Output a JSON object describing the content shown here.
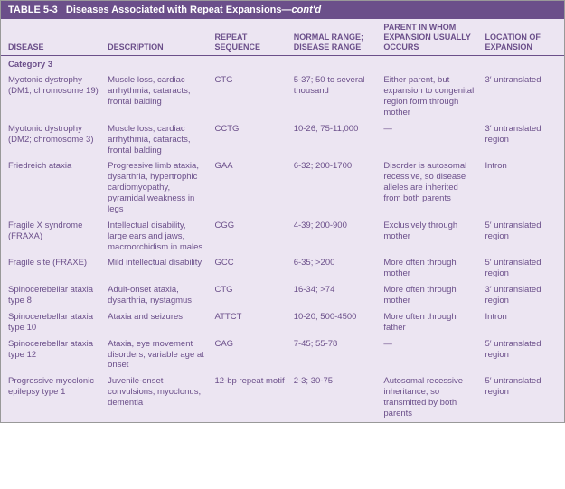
{
  "table": {
    "label": "TABLE 5-3",
    "title": "Diseases Associated with Repeat Expansions—",
    "contd": "cont'd",
    "columns": [
      "DISEASE",
      "DESCRIPTION",
      "REPEAT SEQUENCE",
      "NORMAL RANGE; DISEASE RANGE",
      "PARENT IN WHOM EXPANSION USUALLY OCCURS",
      "LOCATION OF EXPANSION"
    ],
    "category": "Category 3",
    "rows": [
      {
        "disease": "Myotonic dystrophy (DM1; chromosome 19)",
        "description": "Muscle loss, cardiac arrhythmia, cataracts, frontal balding",
        "sequence": "CTG",
        "range": "5-37; 50 to several thousand",
        "parent": "Either parent, but expansion to congenital region form through mother",
        "location": "3′ untranslated"
      },
      {
        "disease": "Myotonic dystrophy (DM2; chromosome 3)",
        "description": "Muscle loss, cardiac arrhythmia, cataracts, frontal balding",
        "sequence": "CCTG",
        "range": "10-26; 75-11,000",
        "parent": "—",
        "location": "3′ untranslated region"
      },
      {
        "disease": "Friedreich ataxia",
        "description": "Progressive limb ataxia, dysarthria, hypertrophic cardiomyopathy, pyramidal weakness in legs",
        "sequence": "GAA",
        "range": "6-32; 200-1700",
        "parent": "Disorder is autosomal recessive, so disease alleles are inherited from both parents",
        "location": "Intron"
      },
      {
        "disease": "Fragile X syndrome (FRAXA)",
        "description": "Intellectual disability, large ears and jaws, macroorchidism in males",
        "sequence": "CGG",
        "range": "4-39; 200-900",
        "parent": "Exclusively through mother",
        "location": "5′ untranslated region"
      },
      {
        "disease": "Fragile site (FRAXE)",
        "description": "Mild intellectual disability",
        "sequence": "GCC",
        "range": "6-35; >200",
        "parent": "More often through mother",
        "location": "5′ untranslated region"
      },
      {
        "disease": "Spinocerebellar ataxia type 8",
        "description": "Adult-onset ataxia, dysarthria, nystagmus",
        "sequence": "CTG",
        "range": "16-34; >74",
        "parent": "More often through mother",
        "location": "3′ untranslated region"
      },
      {
        "disease": "Spinocerebellar ataxia type 10",
        "description": "Ataxia and seizures",
        "sequence": "ATTCT",
        "range": "10-20; 500-4500",
        "parent": "More often through father",
        "location": "Intron"
      },
      {
        "disease": "Spinocerebellar ataxia type 12",
        "description": "Ataxia, eye movement disorders; variable age at onset",
        "sequence": "CAG",
        "range": "7-45; 55-78",
        "parent": "—",
        "location": "5′ untranslated region"
      },
      {
        "disease": "Progressive myoclonic epilepsy type 1",
        "description": "Juvenile-onset convulsions, myoclonus, dementia",
        "sequence": "12-bp repeat motif",
        "range": "2-3; 30-75",
        "parent": "Autosomal recessive inheritance, so transmitted by both parents",
        "location": "5′ untranslated region"
      }
    ]
  }
}
